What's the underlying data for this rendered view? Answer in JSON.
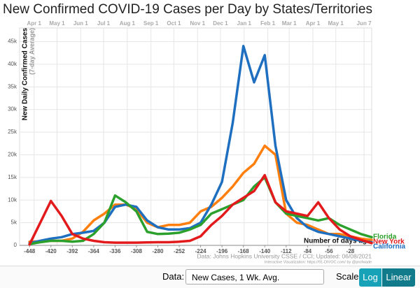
{
  "chart_data": {
    "type": "line",
    "title": "New Confirmed COVID-19 Cases per Day by States/Territories",
    "y_label": "New Daily Confirmed Cases",
    "y_sublabel": "(7-day Average)",
    "x_label": "Number of days ago",
    "source": "Data: Johns Hopkins University CSSE / CCI; Updated: 06/08/2021",
    "credit": "Interactive Visualization: https://91-DIVOC.com/ by @profwade",
    "xlim": [
      -461,
      0
    ],
    "ylim": [
      0,
      48000
    ],
    "xticks": [
      -448,
      -420,
      -392,
      -364,
      -336,
      -308,
      -280,
      -252,
      -224,
      -196,
      -168,
      -140,
      -112,
      -84,
      -56,
      -28
    ],
    "yticks": [
      0,
      {
        "value": 5000,
        "label": "5k"
      },
      {
        "value": 10000,
        "label": "10k"
      },
      {
        "value": 15000,
        "label": "15k"
      },
      {
        "value": 20000,
        "label": "20k"
      },
      {
        "value": 25000,
        "label": "25k"
      },
      {
        "value": 30000,
        "label": "30k"
      },
      {
        "value": 35000,
        "label": "35k"
      },
      {
        "value": 40000,
        "label": "40k"
      },
      {
        "value": 45000,
        "label": "45k"
      }
    ],
    "top_ticks": [
      {
        "value": -442,
        "label": "Apr 1"
      },
      {
        "value": -412,
        "label": "May 1"
      },
      {
        "value": -381,
        "label": "Jun 1"
      },
      {
        "value": -351,
        "label": "Jul 1"
      },
      {
        "value": -320,
        "label": "Aug 1"
      },
      {
        "value": -289,
        "label": "Sep 1"
      },
      {
        "value": -259,
        "label": "Oct 1"
      },
      {
        "value": -228,
        "label": "Nov 1"
      },
      {
        "value": -198,
        "label": "Dec 1"
      },
      {
        "value": -167,
        "label": "Jan 1"
      },
      {
        "value": -136,
        "label": "Feb 1"
      },
      {
        "value": -108,
        "label": "Mar 1"
      },
      {
        "value": -77,
        "label": "Apr 1"
      },
      {
        "value": -47,
        "label": "May 1"
      },
      {
        "value": -10,
        "label": "Jun 7"
      }
    ],
    "grid": true,
    "x": [
      -448,
      -434,
      -420,
      -406,
      -392,
      -378,
      -364,
      -350,
      -336,
      -322,
      -308,
      -294,
      -280,
      -266,
      -252,
      -238,
      -224,
      -210,
      -196,
      -182,
      -168,
      -154,
      -140,
      -126,
      -112,
      -98,
      -84,
      -70,
      -56,
      -42,
      -28,
      -14,
      0
    ],
    "series": [
      {
        "color": "#ff7f0e",
        "values": [
          800,
          900,
          1000,
          1000,
          1500,
          3000,
          5500,
          7000,
          9000,
          9000,
          8000,
          5000,
          4000,
          4500,
          4500,
          5000,
          7500,
          8500,
          10500,
          13000,
          16000,
          18000,
          22000,
          20000,
          7000,
          5000,
          4500,
          3500,
          2500,
          2500,
          2000,
          1500,
          1200
        ]
      },
      {
        "name": "California",
        "color": "#1f6fc0",
        "values": [
          500,
          1000,
          1500,
          1800,
          2500,
          2800,
          3200,
          5000,
          8500,
          9000,
          8500,
          5500,
          4000,
          3500,
          3500,
          3800,
          5000,
          9000,
          14000,
          27000,
          44000,
          36000,
          42000,
          22000,
          10000,
          6000,
          4000,
          3000,
          2500,
          2000,
          1500,
          1000,
          700
        ]
      },
      {
        "name": "Florida",
        "color": "#2ca02c",
        "values": [
          300,
          700,
          1000,
          1000,
          800,
          1000,
          2500,
          5000,
          11000,
          9500,
          7500,
          3000,
          2500,
          2600,
          2800,
          3500,
          4500,
          7000,
          8000,
          9000,
          10000,
          13000,
          15000,
          9500,
          7000,
          6500,
          6000,
          5500,
          6000,
          4500,
          3500,
          2500,
          1800
        ]
      },
      {
        "name": "New York",
        "color": "#e31a1c",
        "values": [
          200,
          5000,
          9800,
          6500,
          2500,
          1500,
          1000,
          700,
          600,
          600,
          600,
          650,
          700,
          700,
          800,
          1000,
          2000,
          4500,
          6500,
          9000,
          10500,
          12000,
          15500,
          9500,
          7500,
          7000,
          6500,
          9500,
          6000,
          3500,
          2000,
          1200,
          500
        ]
      }
    ]
  },
  "controls": {
    "data_label": "Data:",
    "data_value": "New Cases, 1 Wk. Avg.",
    "scale_label": "Scale:",
    "scale_options": [
      "Log",
      "Linear"
    ],
    "scale_selected": "Linear"
  }
}
